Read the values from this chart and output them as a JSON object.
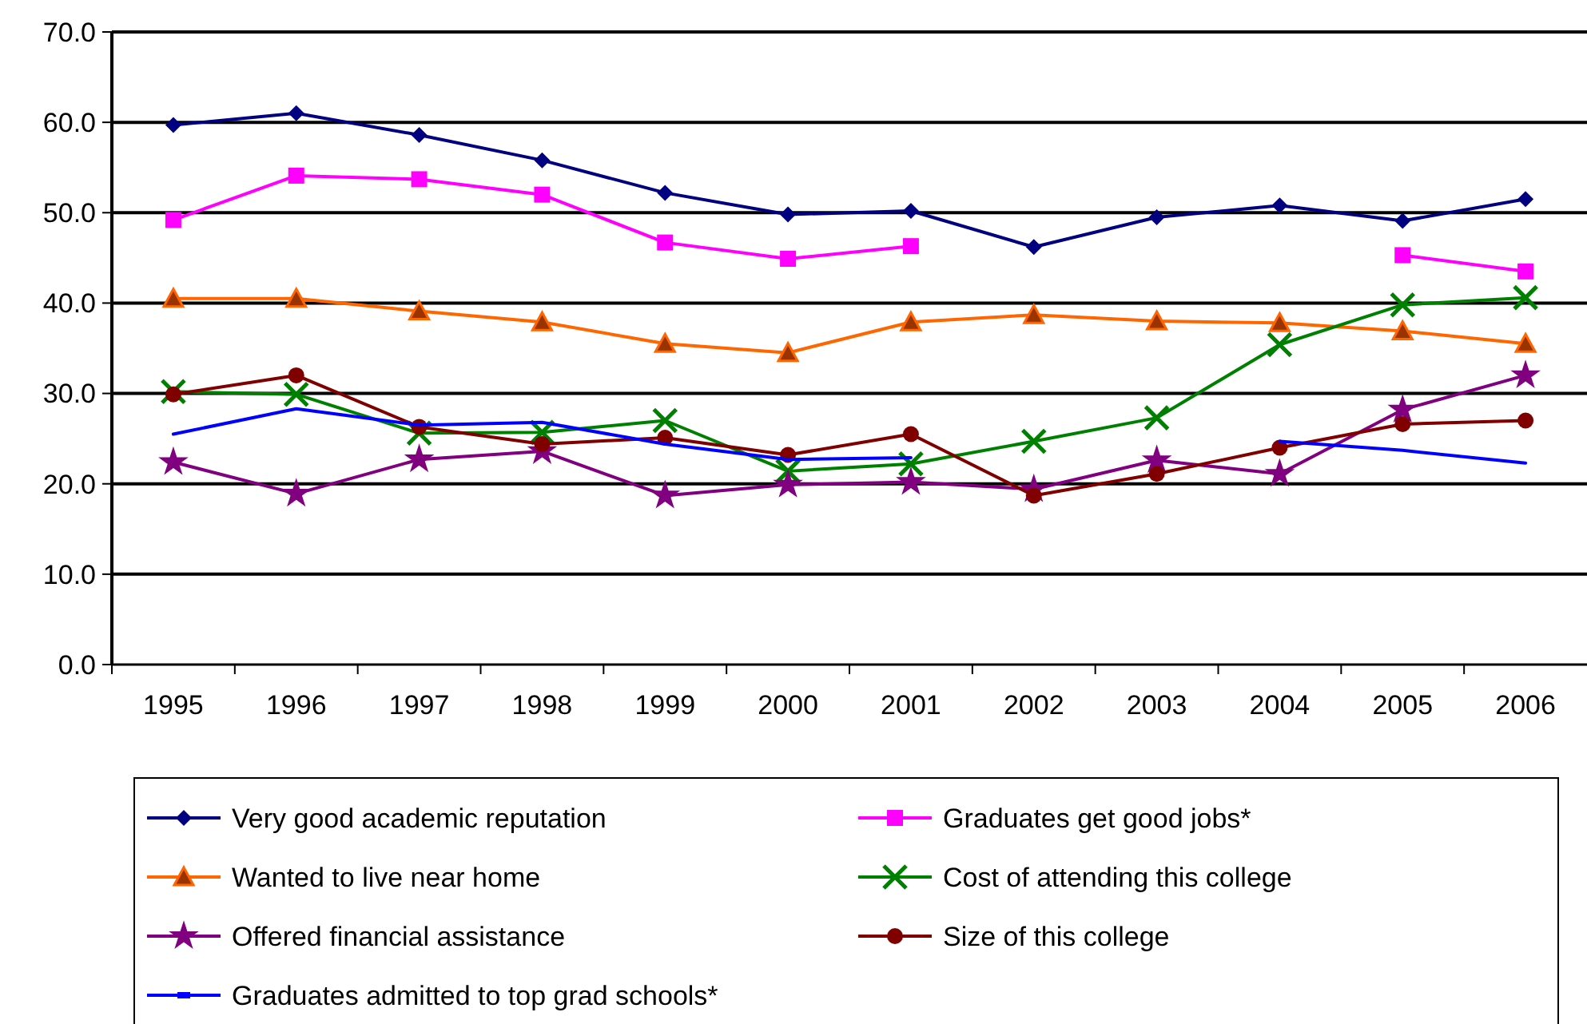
{
  "chart_data": {
    "type": "line",
    "categories": [
      "1995",
      "1996",
      "1997",
      "1998",
      "1999",
      "2000",
      "2001",
      "2002",
      "2003",
      "2004",
      "2005",
      "2006"
    ],
    "ylim": [
      0,
      70
    ],
    "yticks": [
      {
        "value": 0,
        "label": "0.0"
      },
      {
        "value": 10,
        "label": "10.0"
      },
      {
        "value": 20,
        "label": "20.0"
      },
      {
        "value": 30,
        "label": "30.0"
      },
      {
        "value": 40,
        "label": "40.0"
      },
      {
        "value": 50,
        "label": "50.0"
      },
      {
        "value": 60,
        "label": "60.0"
      },
      {
        "value": 70,
        "label": "70.0"
      }
    ],
    "grid": "y",
    "legend": "bottom",
    "series": [
      {
        "name": "Very good academic reputation",
        "color": "#000080",
        "marker": "diamond",
        "values": [
          59.7,
          61.0,
          58.6,
          55.8,
          52.2,
          49.8,
          50.2,
          46.2,
          49.5,
          50.8,
          49.1,
          51.5
        ]
      },
      {
        "name": "Graduates get good jobs*",
        "color": "#ff00ff",
        "marker": "square",
        "values": [
          49.2,
          54.1,
          53.7,
          52.0,
          46.7,
          44.9,
          46.3,
          null,
          null,
          null,
          45.3,
          43.5
        ]
      },
      {
        "name": "Wanted to live near home",
        "color": "#ff6600",
        "marker": "triangle",
        "values": [
          40.5,
          40.5,
          39.1,
          37.9,
          35.5,
          34.5,
          37.9,
          38.7,
          38.0,
          37.8,
          36.9,
          35.5
        ]
      },
      {
        "name": "Cost of attending this college",
        "color": "#008000",
        "marker": "cross",
        "values": [
          30.2,
          29.9,
          25.6,
          25.7,
          27.0,
          21.4,
          22.2,
          24.7,
          27.3,
          35.4,
          39.8,
          40.6
        ]
      },
      {
        "name": "Offered financial assistance",
        "color": "#800080",
        "marker": "star",
        "values": [
          22.4,
          18.9,
          22.7,
          23.6,
          18.7,
          19.9,
          20.2,
          19.4,
          22.6,
          21.1,
          28.2,
          32.0
        ]
      },
      {
        "name": "Size of this college",
        "color": "#800000",
        "marker": "circle",
        "values": [
          29.9,
          32.0,
          26.3,
          24.4,
          25.1,
          23.2,
          25.5,
          18.7,
          21.1,
          24.0,
          26.6,
          27.0
        ]
      },
      {
        "name": "Graduates admitted to top grad schools*",
        "color": "#0000ff",
        "marker": "none",
        "values": [
          25.5,
          28.3,
          26.5,
          26.8,
          24.4,
          22.7,
          22.9,
          null,
          null,
          24.7,
          23.7,
          22.3
        ]
      }
    ]
  }
}
